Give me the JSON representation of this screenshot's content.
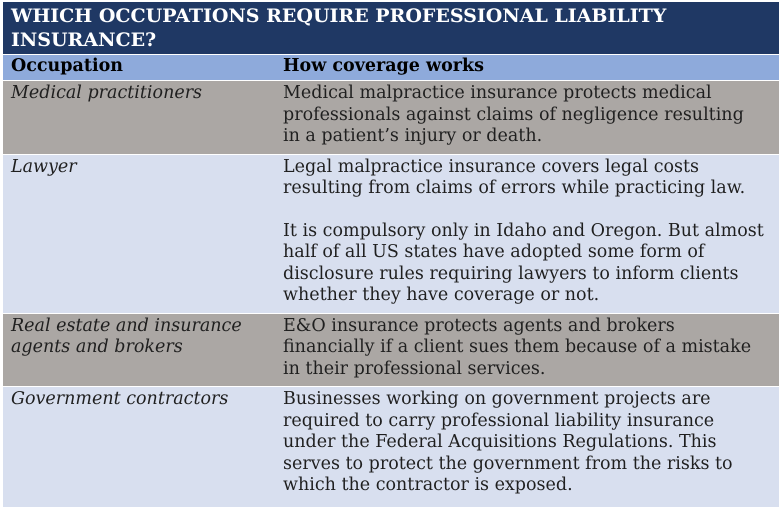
{
  "title": "WHICH OCCUPATIONS REQUIRE PROFESSIONAL LIABILITY INSURANCE?",
  "columns": {
    "occupation": "Occupation",
    "coverage": "How coverage works"
  },
  "rows": [
    {
      "occupation": "Medical practitioners",
      "coverage": [
        "Medical malpractice insurance protects medical professionals against claims of negligence resulting in a patient’s injury or death."
      ]
    },
    {
      "occupation": "Lawyer",
      "coverage": [
        "Legal malpractice insurance covers legal costs resulting from claims of errors while practicing law.",
        "It is compulsory only in Idaho and Oregon. But almost half of all US states have adopted some form of disclosure rules requiring lawyers to inform clients whether they have coverage or not."
      ]
    },
    {
      "occupation": "Real estate and insurance agents and brokers",
      "coverage": [
        "E&O insurance protects agents and brokers financially if a client sues them because of a mistake in their professional services."
      ]
    },
    {
      "occupation": "Government contractors",
      "coverage": [
        "Businesses working on government projects are required to carry professional liability insurance under the Federal Acquisitions Regulations. This serves to protect the government from the risks to which the contractor is exposed."
      ]
    }
  ],
  "colors": {
    "title_bar": "#1F3864",
    "title_text": "#FFFFFF",
    "header_row": "#8EAADB",
    "row_taupe": "#ABA7A4",
    "row_blue": "#D8DFEF",
    "body_text": "#1F1F1F"
  }
}
